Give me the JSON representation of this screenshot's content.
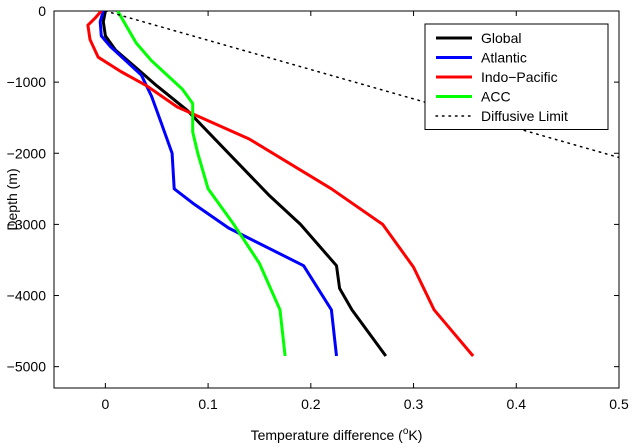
{
  "chart_data": {
    "type": "line",
    "xlabel_text": "Temperature difference (",
    "xlabel_sup": "o",
    "xlabel_unit": "K)",
    "ylabel": "Depth (m)",
    "xlim": [
      -0.05,
      0.5
    ],
    "ylim": [
      -5300,
      0
    ],
    "xticks": [
      0,
      0.1,
      0.2,
      0.3,
      0.4,
      0.5
    ],
    "xtick_labels": [
      "0",
      "0.1",
      "0.2",
      "0.3",
      "0.4",
      "0.5"
    ],
    "yticks": [
      0,
      -1000,
      -2000,
      -3000,
      -4000,
      -5000
    ],
    "ytick_labels": [
      "0",
      "−1000",
      "−2000",
      "−3000",
      "−4000",
      "−5000"
    ],
    "grid": false,
    "legend_position": "top-right",
    "series": [
      {
        "name": "Global",
        "color": "#000000",
        "style": "solid",
        "x": [
          0.0,
          -0.002,
          0.0,
          0.01,
          0.03,
          0.05,
          0.08,
          0.12,
          0.16,
          0.19,
          0.225,
          0.228,
          0.24,
          0.273
        ],
        "y": [
          0,
          -150,
          -350,
          -550,
          -800,
          -1050,
          -1400,
          -2000,
          -2600,
          -3000,
          -3580,
          -3900,
          -4200,
          -4850
        ]
      },
      {
        "name": "Atlantic",
        "color": "#0000ff",
        "style": "solid",
        "x": [
          -0.002,
          -0.005,
          -0.004,
          0.005,
          0.02,
          0.035,
          0.045,
          0.055,
          0.065,
          0.067,
          0.085,
          0.12,
          0.193,
          0.22,
          0.225
        ],
        "y": [
          0,
          -150,
          -350,
          -500,
          -700,
          -900,
          -1200,
          -1600,
          -2000,
          -2500,
          -2700,
          -3050,
          -3580,
          -4200,
          -4850
        ]
      },
      {
        "name": "Indo−Pacific",
        "color": "#ff0000",
        "style": "solid",
        "x": [
          -0.004,
          -0.01,
          -0.017,
          -0.015,
          -0.007,
          0.015,
          0.04,
          0.07,
          0.14,
          0.22,
          0.27,
          0.3,
          0.32,
          0.358
        ],
        "y": [
          0,
          -100,
          -200,
          -400,
          -650,
          -850,
          -1050,
          -1350,
          -1800,
          -2500,
          -3000,
          -3600,
          -4200,
          -4850
        ]
      },
      {
        "name": "ACC",
        "color": "#00ff00",
        "style": "solid",
        "x": [
          0.012,
          0.02,
          0.03,
          0.045,
          0.06,
          0.075,
          0.085,
          0.085,
          0.09,
          0.1,
          0.125,
          0.15,
          0.17,
          0.175
        ],
        "y": [
          0,
          -200,
          -450,
          -700,
          -900,
          -1100,
          -1300,
          -1700,
          -2000,
          -2500,
          -3000,
          -3550,
          -4200,
          -4850
        ]
      },
      {
        "name": "Diffusive Limit",
        "color": "#000000",
        "style": "dotted",
        "x": [
          0.0,
          0.5
        ],
        "y": [
          0,
          -2060
        ]
      }
    ]
  }
}
